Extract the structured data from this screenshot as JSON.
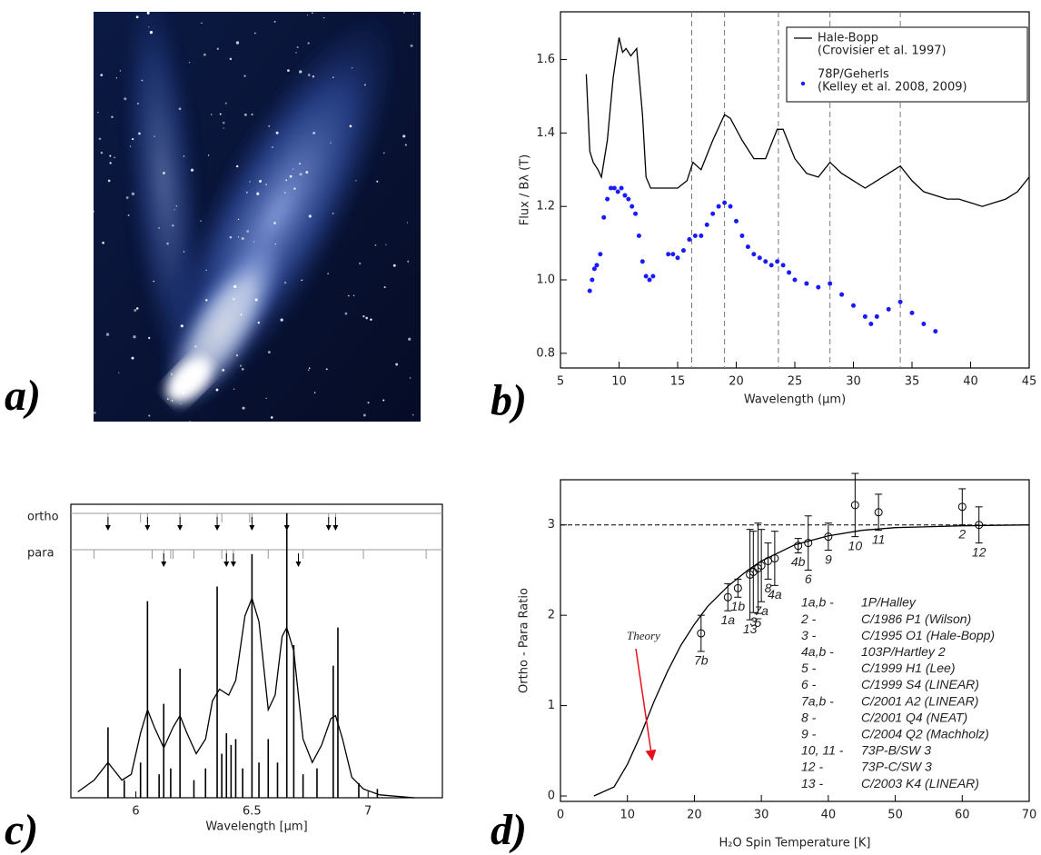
{
  "photo": {
    "panel_label": "a)"
  },
  "chart_data": [
    {
      "type": "line",
      "panel_label": "b)",
      "xlabel": "Wavelength (μm)",
      "ylabel": "Flux / Bλ (T)",
      "xlim": [
        5,
        45
      ],
      "ylim": [
        0.76,
        1.73
      ],
      "xticks": [
        5,
        10,
        15,
        20,
        25,
        30,
        35,
        40,
        45
      ],
      "yticks": [
        0.8,
        {
          "value": 1,
          "label": "1.0"
        },
        1.2,
        1.4,
        1.6
      ],
      "vlines": [
        16.2,
        19,
        23.6,
        28,
        34
      ],
      "series": [
        {
          "name": "Hale-Bopp",
          "reference": "(Crovisier et al. 1997)",
          "color": "#000000",
          "style": "line",
          "x": [
            7.2,
            7.5,
            7.8,
            8.2,
            8.5,
            9,
            9.5,
            10,
            10.3,
            10.6,
            11,
            11.5,
            12,
            12.3,
            12.7,
            14,
            15,
            15.8,
            16.3,
            17,
            18,
            19,
            19.5,
            20.5,
            21.5,
            22.5,
            23.5,
            24,
            25,
            26,
            27,
            28,
            29,
            30,
            31,
            32,
            33,
            34,
            35,
            36,
            37,
            38,
            39,
            40,
            41,
            42,
            43,
            44,
            45
          ],
          "values": [
            1.56,
            1.35,
            1.32,
            1.3,
            1.28,
            1.38,
            1.55,
            1.66,
            1.62,
            1.63,
            1.61,
            1.63,
            1.45,
            1.28,
            1.25,
            1.25,
            1.25,
            1.27,
            1.32,
            1.3,
            1.38,
            1.45,
            1.44,
            1.38,
            1.33,
            1.33,
            1.41,
            1.41,
            1.33,
            1.29,
            1.28,
            1.32,
            1.29,
            1.27,
            1.25,
            1.27,
            1.29,
            1.31,
            1.27,
            1.24,
            1.23,
            1.22,
            1.22,
            1.21,
            1.2,
            1.21,
            1.22,
            1.24,
            1.28
          ]
        },
        {
          "name": "78P/Geherls",
          "reference": "(Kelley et al. 2008, 2009)",
          "color": "#1a1aff",
          "style": "points",
          "x": [
            7.5,
            7.7,
            7.9,
            8.1,
            8.4,
            8.7,
            9,
            9.3,
            9.6,
            9.9,
            10.2,
            10.5,
            10.8,
            11.1,
            11.4,
            11.7,
            12,
            12.3,
            12.6,
            12.9,
            14.2,
            14.6,
            15,
            15.5,
            16,
            16.5,
            17,
            17.5,
            18,
            18.5,
            19,
            19.5,
            20,
            20.5,
            21,
            21.5,
            22,
            22.5,
            23,
            23.5,
            24,
            24.5,
            25,
            26,
            27,
            28,
            29,
            30,
            31,
            31.5,
            32,
            33,
            34,
            35,
            36,
            37
          ],
          "values": [
            0.97,
            1,
            1.03,
            1.04,
            1.07,
            1.17,
            1.22,
            1.25,
            1.25,
            1.24,
            1.25,
            1.23,
            1.22,
            1.2,
            1.18,
            1.12,
            1.05,
            1.01,
            1,
            1.01,
            1.07,
            1.07,
            1.06,
            1.08,
            1.11,
            1.12,
            1.12,
            1.15,
            1.18,
            1.2,
            1.21,
            1.2,
            1.16,
            1.12,
            1.09,
            1.07,
            1.06,
            1.05,
            1.04,
            1.05,
            1.04,
            1.02,
            1,
            0.99,
            0.98,
            0.99,
            0.96,
            0.93,
            0.9,
            0.88,
            0.9,
            0.92,
            0.94,
            0.91,
            0.88,
            0.86
          ]
        }
      ]
    },
    {
      "type": "spectrum",
      "panel_label": "c)",
      "xlabel": "Wavelength [μm]",
      "xlim": [
        5.72,
        7.32
      ],
      "ylim": [
        0,
        1
      ],
      "xticks": [
        6,
        6.5,
        7
      ],
      "markers": [
        {
          "label": "ortho",
          "x": [
            5.88,
            6.02,
            6.05,
            6.19,
            6.35,
            6.37,
            6.49,
            6.5,
            6.65,
            6.83,
            6.86
          ],
          "arrows": [
            5.88,
            6.05,
            6.19,
            6.35,
            6.5,
            6.65,
            6.83,
            6.86
          ]
        },
        {
          "label": "para",
          "x": [
            5.82,
            6.07,
            6.12,
            6.15,
            6.16,
            6.25,
            6.37,
            6.39,
            6.42,
            6.57,
            6.65,
            6.72,
            6.98,
            7.25
          ],
          "arrows": [
            6.12,
            6.39,
            6.42,
            6.7
          ]
        }
      ],
      "series": [
        {
          "color": "#000000",
          "style": "line",
          "x": [
            5.75,
            5.82,
            5.88,
            5.94,
            5.98,
            6.02,
            6.05,
            6.08,
            6.12,
            6.16,
            6.19,
            6.22,
            6.26,
            6.3,
            6.33,
            6.36,
            6.4,
            6.43,
            6.47,
            6.5,
            6.53,
            6.57,
            6.6,
            6.63,
            6.65,
            6.68,
            6.72,
            6.76,
            6.8,
            6.84,
            6.86,
            6.89,
            6.93,
            6.98,
            7.05,
            7.2
          ],
          "values": [
            0.02,
            0.06,
            0.12,
            0.06,
            0.08,
            0.22,
            0.3,
            0.24,
            0.17,
            0.24,
            0.28,
            0.22,
            0.15,
            0.2,
            0.33,
            0.37,
            0.35,
            0.4,
            0.62,
            0.68,
            0.6,
            0.3,
            0.35,
            0.55,
            0.58,
            0.5,
            0.2,
            0.12,
            0.18,
            0.27,
            0.28,
            0.2,
            0.07,
            0.03,
            0.01,
            0
          ]
        },
        {
          "color": "#000000",
          "style": "sticks",
          "x": [
            5.88,
            5.95,
            6.02,
            6.05,
            6.1,
            6.12,
            6.15,
            6.19,
            6.25,
            6.3,
            6.35,
            6.37,
            6.39,
            6.41,
            6.43,
            6.46,
            6.5,
            6.53,
            6.57,
            6.61,
            6.65,
            6.68,
            6.72,
            6.78,
            6.85,
            6.87,
            6.96,
            7.04
          ],
          "values": [
            0.24,
            0.06,
            0.12,
            0.67,
            0.08,
            0.32,
            0.1,
            0.44,
            0.06,
            0.1,
            0.72,
            0.15,
            0.22,
            0.18,
            0.2,
            0.1,
            0.83,
            0.12,
            0.2,
            0.12,
            0.97,
            0.52,
            0.08,
            0.1,
            0.45,
            0.58,
            0.05,
            0.03
          ]
        }
      ]
    },
    {
      "type": "scatter",
      "panel_label": "d)",
      "xlabel": "H₂O Spin Temperature [K]",
      "ylabel": "Ortho - Para Ratio",
      "xlim": [
        0,
        70
      ],
      "ylim": [
        -0.06,
        3.5
      ],
      "xticks": [
        0,
        10,
        20,
        30,
        40,
        50,
        60,
        70
      ],
      "yticks": [
        0,
        1,
        2,
        3
      ],
      "hline": 3,
      "series": [
        {
          "name": "Theory",
          "color": "#000000",
          "label_color": "#e8101c",
          "style": "line",
          "x": [
            5,
            8,
            10,
            12,
            14,
            16,
            18,
            20,
            22,
            25,
            28,
            30,
            35,
            40,
            45,
            50,
            60,
            70
          ],
          "values": [
            0,
            0.1,
            0.35,
            0.68,
            1.05,
            1.38,
            1.67,
            1.9,
            2.1,
            2.32,
            2.5,
            2.6,
            2.78,
            2.88,
            2.94,
            2.97,
            2.99,
            3
          ]
        },
        {
          "color": "#000000",
          "style": "points",
          "x": [
            21,
            25,
            26.5,
            28.3,
            28.8,
            29.5,
            30,
            31,
            32,
            35.5,
            37,
            40,
            44,
            47.5,
            60,
            62.5
          ],
          "values": [
            1.8,
            2.2,
            2.3,
            2.45,
            2.48,
            2.52,
            2.55,
            2.6,
            2.63,
            2.77,
            2.8,
            2.87,
            3.22,
            3.14,
            3.2,
            3
          ],
          "errors": [
            0.2,
            0.15,
            0.1,
            0.5,
            0.45,
            0.5,
            0.4,
            0.2,
            0.3,
            0.08,
            0.3,
            0.15,
            0.35,
            0.2,
            0.2,
            0.2
          ],
          "point_labels": [
            "7b",
            "1a",
            "1b",
            "13",
            "3",
            "5",
            "7a",
            "8",
            "4a",
            "4b",
            "6",
            "9",
            "10",
            "11",
            "2",
            "12"
          ]
        }
      ],
      "key": [
        {
          "id": "1a,b -",
          "name": "1P/Halley"
        },
        {
          "id": "2 -",
          "name": "C/1986 P1 (Wilson)"
        },
        {
          "id": "3 -",
          "name": "C/1995 O1 (Hale-Bopp)"
        },
        {
          "id": "4a,b -",
          "name": "103P/Hartley 2"
        },
        {
          "id": "5 -",
          "name": "C/1999 H1 (Lee)"
        },
        {
          "id": "6 -",
          "name": "C/1999 S4 (LINEAR)"
        },
        {
          "id": "7a,b -",
          "name": "C/2001 A2 (LINEAR)"
        },
        {
          "id": "8 -",
          "name": "C/2001 Q4 (NEAT)"
        },
        {
          "id": "9 -",
          "name": "C/2004 Q2 (Machholz)"
        },
        {
          "id": "10, 11 -",
          "name": "73P-B/SW 3"
        },
        {
          "id": "12 -",
          "name": "73P-C/SW 3"
        },
        {
          "id": "13 -",
          "name": "C/2003 K4 (LINEAR)"
        }
      ]
    }
  ]
}
